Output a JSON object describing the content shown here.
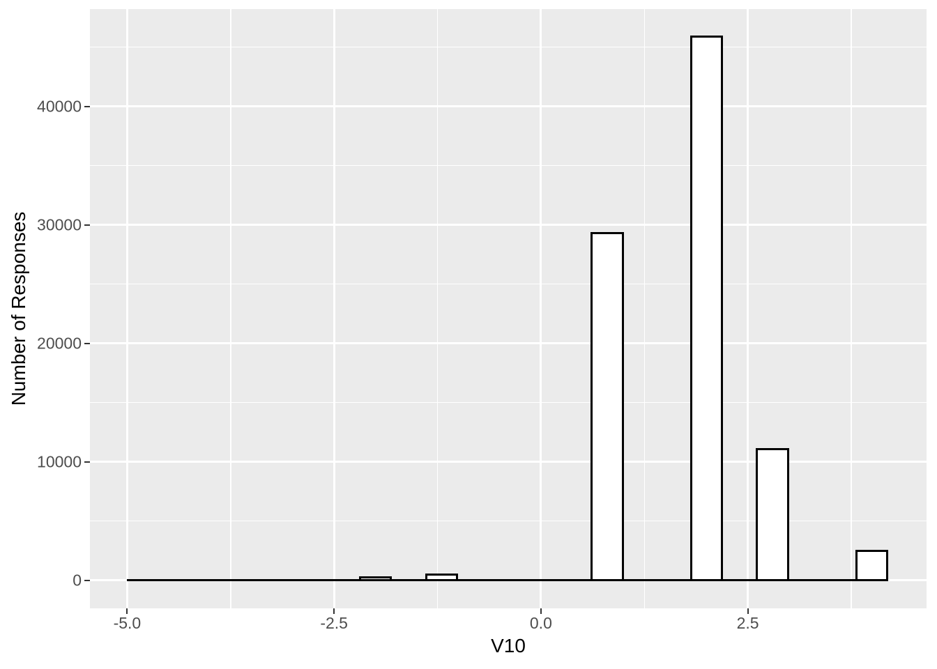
{
  "chart_data": {
    "type": "bar",
    "variant": "histogram",
    "title": "",
    "xlabel": "V10",
    "ylabel": "Number of Responses",
    "x_ticks": [
      {
        "value": -5.0,
        "label": "-5.0"
      },
      {
        "value": -2.5,
        "label": "-2.5"
      },
      {
        "value": 0.0,
        "label": "0.0"
      },
      {
        "value": 2.5,
        "label": "2.5"
      }
    ],
    "y_ticks": [
      {
        "value": 0,
        "label": "0"
      },
      {
        "value": 10000,
        "label": "10000"
      },
      {
        "value": 20000,
        "label": "20000"
      },
      {
        "value": 30000,
        "label": "30000"
      },
      {
        "value": 40000,
        "label": "40000"
      }
    ],
    "x_minor": [
      -3.75,
      -1.25,
      1.25,
      3.75
    ],
    "y_minor": [
      5000,
      15000,
      25000,
      35000,
      45000
    ],
    "xlim": [
      -5.45,
      4.66
    ],
    "ylim": [
      -2370,
      48220
    ],
    "grid": true,
    "legend": "none",
    "bins": [
      {
        "x0": -2.2,
        "x1": -1.8,
        "count": 250
      },
      {
        "x0": -1.4,
        "x1": -1.0,
        "count": 500
      },
      {
        "x0": 0.6,
        "x1": 1.0,
        "count": 29300
      },
      {
        "x0": 1.8,
        "x1": 2.2,
        "count": 45900
      },
      {
        "x0": 2.6,
        "x1": 3.0,
        "count": 11100
      },
      {
        "x0": 3.8,
        "x1": 4.2,
        "count": 2500
      }
    ],
    "zero_line": {
      "x0": -5.0,
      "x1": 4.2
    },
    "colors": {
      "panel_background": "#EBEBEB",
      "grid_line": "#FFFFFF",
      "bar_fill": "#FFFFFF",
      "bar_border": "#000000",
      "axis_text": "#4D4D4D",
      "axis_title": "#000000",
      "tick_mark": "#333333"
    }
  }
}
